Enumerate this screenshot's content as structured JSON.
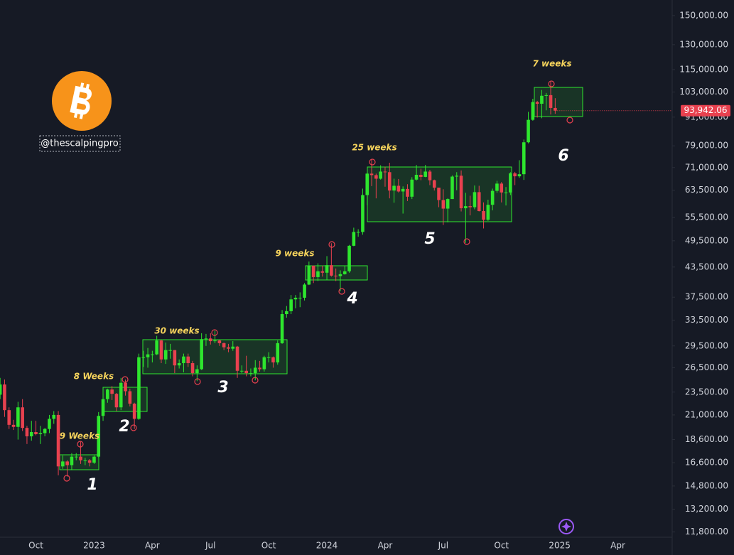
{
  "chart_data": {
    "type": "candlestick",
    "log_scale": true,
    "grid": false,
    "up_color": "#2ee62e",
    "down_color": "#e8414f",
    "watermark": "@thescalpingpro",
    "annotations": [
      "9 Weeks",
      "1",
      "8 Weeks",
      "2",
      "30 weeks",
      "3",
      "9 weeks",
      "4",
      "25 weeks",
      "5",
      "7 weeks",
      "6"
    ],
    "last_price": {
      "value": 93942.06,
      "label": "93,942.06"
    },
    "ylim": [
      11500,
      162000
    ],
    "yticks": [
      {
        "value": 11800,
        "label": "11,800.00"
      },
      {
        "value": 13200,
        "label": "13,200.00"
      },
      {
        "value": 14800,
        "label": "14,800.00"
      },
      {
        "value": 16600,
        "label": "16,600.00"
      },
      {
        "value": 18600,
        "label": "18,600.00"
      },
      {
        "value": 21000,
        "label": "21,000.00"
      },
      {
        "value": 23500,
        "label": "23,500.00"
      },
      {
        "value": 26500,
        "label": "26,500.00"
      },
      {
        "value": 29500,
        "label": "29,500.00"
      },
      {
        "value": 33500,
        "label": "33,500.00"
      },
      {
        "value": 37500,
        "label": "37,500.00"
      },
      {
        "value": 43500,
        "label": "43,500.00"
      },
      {
        "value": 49500,
        "label": "49,500.00"
      },
      {
        "value": 55500,
        "label": "55,500.00"
      },
      {
        "value": 63500,
        "label": "63,500.00"
      },
      {
        "value": 71000,
        "label": "71,000.00"
      },
      {
        "value": 79000,
        "label": "79,000.00"
      },
      {
        "value": 91000,
        "label": "91,000.00"
      },
      {
        "value": 103000,
        "label": "103,000.00"
      },
      {
        "value": 115000,
        "label": "115,000.00"
      },
      {
        "value": 130000,
        "label": "130,000.00"
      },
      {
        "value": 150000,
        "label": "150,000.00"
      }
    ],
    "categories": [
      null,
      null,
      null,
      null,
      null,
      null,
      null,
      null,
      "Oct",
      null,
      null,
      null,
      null,
      null,
      null,
      null,
      null,
      null,
      null,
      null,
      null,
      "2023",
      null,
      null,
      null,
      null,
      null,
      null,
      null,
      null,
      null,
      null,
      null,
      null,
      "Apr",
      null,
      null,
      null,
      null,
      null,
      null,
      null,
      null,
      null,
      null,
      null,
      null,
      "Jul",
      null,
      null,
      null,
      null,
      null,
      null,
      null,
      null,
      null,
      null,
      null,
      null,
      "Oct",
      null,
      null,
      null,
      null,
      null,
      null,
      null,
      null,
      null,
      null,
      null,
      null,
      "2024",
      null,
      null,
      null,
      null,
      null,
      null,
      null,
      null,
      null,
      null,
      null,
      null,
      "Apr",
      null,
      null,
      null,
      null,
      null,
      null,
      null,
      null,
      null,
      null,
      null,
      null,
      "Jul",
      null,
      null,
      null,
      null,
      null,
      null,
      null,
      null,
      null,
      null,
      null,
      null,
      "Oct",
      null,
      null,
      null,
      null,
      null,
      null,
      null,
      null,
      null,
      null,
      null,
      null,
      "2025",
      null,
      null,
      null,
      null,
      null,
      null,
      null,
      null,
      null,
      null,
      null,
      null,
      "Apr",
      null,
      null,
      null,
      null,
      null,
      null,
      null,
      null,
      null,
      null
    ],
    "ohlc": [
      [
        23200,
        25200,
        22700,
        24400
      ],
      [
        24400,
        25000,
        20800,
        21500
      ],
      [
        21500,
        21800,
        19600,
        20000
      ],
      [
        20000,
        20500,
        19500,
        19800
      ],
      [
        19800,
        22400,
        18600,
        21800
      ],
      [
        21800,
        22700,
        19400,
        19700
      ],
      [
        19700,
        19900,
        18200,
        18900
      ],
      [
        18900,
        20400,
        18500,
        19300
      ],
      [
        19300,
        20400,
        19000,
        19100
      ],
      [
        19100,
        19900,
        18200,
        19200
      ],
      [
        19200,
        19700,
        18900,
        19600
      ],
      [
        19600,
        21000,
        19200,
        20600
      ],
      [
        20600,
        21400,
        20100,
        21000
      ],
      [
        21000,
        21400,
        15600,
        16300
      ],
      [
        16300,
        17200,
        16100,
        16700
      ],
      [
        16700,
        16800,
        15500,
        16400
      ],
      [
        16400,
        17400,
        16000,
        17100
      ],
      [
        17100,
        17400,
        16800,
        17100
      ],
      [
        17100,
        18400,
        16500,
        16800
      ],
      [
        16800,
        17000,
        16400,
        16800
      ],
      [
        16800,
        16900,
        16300,
        16600
      ],
      [
        16600,
        17200,
        16500,
        17100
      ],
      [
        17100,
        21300,
        17000,
        20900
      ],
      [
        20900,
        23300,
        20400,
        22700
      ],
      [
        22700,
        23900,
        22300,
        23800
      ],
      [
        23800,
        24200,
        22600,
        23300
      ],
      [
        23300,
        23400,
        21400,
        21800
      ],
      [
        21800,
        25200,
        21500,
        24600
      ],
      [
        24600,
        25000,
        23100,
        23600
      ],
      [
        23600,
        23900,
        21900,
        22200
      ],
      [
        22200,
        22300,
        19600,
        20600
      ],
      [
        20600,
        28400,
        20500,
        27900
      ],
      [
        27900,
        28800,
        26600,
        27900
      ],
      [
        27900,
        29200,
        26500,
        28300
      ],
      [
        28300,
        28800,
        27200,
        28300
      ],
      [
        28300,
        31000,
        28200,
        30300
      ],
      [
        30300,
        30400,
        27100,
        27600
      ],
      [
        27600,
        30000,
        27000,
        28900
      ],
      [
        28900,
        29800,
        27700,
        28900
      ],
      [
        28900,
        28900,
        25800,
        26800
      ],
      [
        26800,
        27600,
        26400,
        27100
      ],
      [
        27100,
        28400,
        25900,
        28000
      ],
      [
        28000,
        28400,
        26600,
        27100
      ],
      [
        27100,
        27400,
        25400,
        25800
      ],
      [
        25800,
        26800,
        24800,
        26300
      ],
      [
        26300,
        31400,
        26200,
        30500
      ],
      [
        30500,
        31300,
        29500,
        30600
      ],
      [
        30600,
        31400,
        29700,
        30200
      ],
      [
        30200,
        31800,
        29900,
        30300
      ],
      [
        30300,
        30400,
        29500,
        29900
      ],
      [
        29900,
        30000,
        28900,
        29300
      ],
      [
        29300,
        29800,
        28600,
        29100
      ],
      [
        29100,
        30200,
        28800,
        29400
      ],
      [
        29400,
        29500,
        25200,
        26100
      ],
      [
        26100,
        26800,
        25800,
        26100
      ],
      [
        26100,
        28100,
        25400,
        25800
      ],
      [
        25800,
        26400,
        25400,
        25800
      ],
      [
        25800,
        27500,
        24900,
        26500
      ],
      [
        26500,
        27400,
        26000,
        26300
      ],
      [
        26300,
        28100,
        26000,
        27900
      ],
      [
        27900,
        28600,
        27200,
        27900
      ],
      [
        27900,
        28000,
        26500,
        27200
      ],
      [
        27200,
        30300,
        26900,
        29900
      ],
      [
        29900,
        35200,
        29800,
        34500
      ],
      [
        34500,
        35900,
        33900,
        35000
      ],
      [
        35000,
        37900,
        34500,
        37100
      ],
      [
        37100,
        37900,
        35500,
        37400
      ],
      [
        37400,
        38400,
        35700,
        37400
      ],
      [
        37400,
        40200,
        36900,
        39900
      ],
      [
        39900,
        44700,
        39800,
        43800
      ],
      [
        43800,
        43800,
        40200,
        41400
      ],
      [
        41400,
        44300,
        40600,
        42600
      ],
      [
        42600,
        43800,
        41500,
        42300
      ],
      [
        42300,
        45900,
        40800,
        43900
      ],
      [
        43900,
        48900,
        41500,
        41700
      ],
      [
        41700,
        43200,
        40600,
        41600
      ],
      [
        41600,
        42800,
        38600,
        42000
      ],
      [
        42000,
        43800,
        41900,
        42600
      ],
      [
        42600,
        48500,
        42300,
        48300
      ],
      [
        48300,
        52800,
        48200,
        51700
      ],
      [
        51700,
        52400,
        50500,
        51700
      ],
      [
        51700,
        64000,
        51000,
        62000
      ],
      [
        62000,
        69200,
        59000,
        68900
      ],
      [
        68900,
        73800,
        64800,
        68400
      ],
      [
        68400,
        68900,
        61000,
        67200
      ],
      [
        67200,
        71800,
        66900,
        69600
      ],
      [
        69600,
        71300,
        64600,
        69400
      ],
      [
        69400,
        72700,
        61000,
        63400
      ],
      [
        63400,
        67200,
        59700,
        64900
      ],
      [
        64900,
        67100,
        62800,
        63100
      ],
      [
        63100,
        64700,
        56600,
        63900
      ],
      [
        63900,
        65400,
        60200,
        61500
      ],
      [
        61500,
        67700,
        60800,
        66900
      ],
      [
        66900,
        71900,
        66600,
        68500
      ],
      [
        68500,
        70600,
        66700,
        67800
      ],
      [
        67800,
        71900,
        67700,
        69600
      ],
      [
        69600,
        70200,
        65100,
        66700
      ],
      [
        66700,
        66900,
        63400,
        64300
      ],
      [
        64300,
        64300,
        58400,
        60500
      ],
      [
        60500,
        63800,
        53500,
        58000
      ],
      [
        58000,
        61000,
        54200,
        60800
      ],
      [
        60800,
        68300,
        60800,
        67900
      ],
      [
        67900,
        69400,
        63500,
        68200
      ],
      [
        68200,
        70000,
        57200,
        58100
      ],
      [
        58100,
        62700,
        49000,
        58700
      ],
      [
        58700,
        61800,
        56100,
        58400
      ],
      [
        58400,
        65000,
        57800,
        62900
      ],
      [
        62900,
        64900,
        57200,
        57300
      ],
      [
        57300,
        59800,
        52600,
        54900
      ],
      [
        54900,
        60600,
        54600,
        59100
      ],
      [
        59100,
        64000,
        57500,
        63300
      ],
      [
        63300,
        66500,
        62700,
        65600
      ],
      [
        65600,
        66100,
        59800,
        62800
      ],
      [
        62800,
        64500,
        58900,
        62800
      ],
      [
        62800,
        69400,
        62000,
        69000
      ],
      [
        69000,
        69500,
        65100,
        68000
      ],
      [
        68000,
        73600,
        67500,
        68700
      ],
      [
        68700,
        81500,
        66800,
        80400
      ],
      [
        80400,
        93400,
        80000,
        89800
      ],
      [
        89800,
        99600,
        89400,
        98000
      ],
      [
        98000,
        98600,
        90800,
        97200
      ],
      [
        97200,
        104000,
        90500,
        101100
      ],
      [
        101100,
        102500,
        94100,
        101400
      ],
      [
        101400,
        108300,
        92200,
        95200
      ],
      [
        95200,
        99900,
        92500,
        93942.06
      ],
      null,
      null,
      null,
      null,
      null,
      null,
      null,
      null,
      null,
      null,
      null,
      null,
      null,
      null,
      null,
      null,
      null,
      null,
      null,
      null,
      null,
      null,
      null,
      null
    ]
  }
}
